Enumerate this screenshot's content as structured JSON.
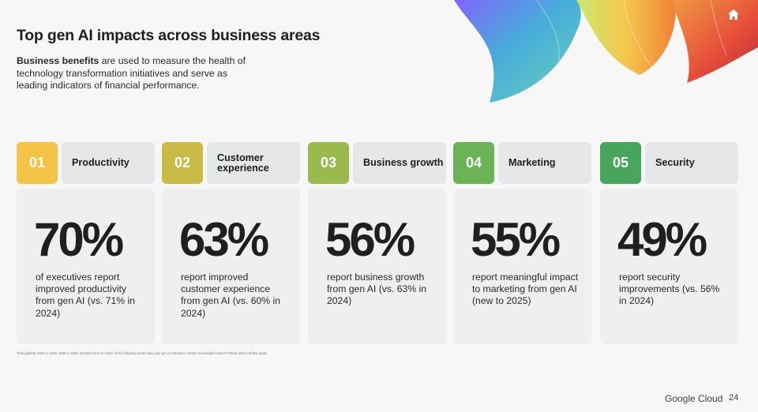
{
  "title": "Top gen AI impacts across business areas",
  "intro": {
    "bold": "Business benefits",
    "rest": " are used to measure the health of technology transformation initiatives and serve as leading indicators of financial performance."
  },
  "areas": [
    {
      "num": "01",
      "label": "Productivity",
      "pct": "70%",
      "desc": "of executives report improved productivity from gen AI (vs. 71% in 2024)",
      "color": "#f3c445"
    },
    {
      "num": "02",
      "label": "Customer experience",
      "pct": "63%",
      "desc": "report improved customer experience from gen AI (vs. 60% in 2024)",
      "color": "#c9bb45"
    },
    {
      "num": "03",
      "label": "Business growth",
      "pct": "56%",
      "desc": "report business growth from gen AI (vs. 63% in 2024)",
      "color": "#9bba4e"
    },
    {
      "num": "04",
      "label": "Marketing",
      "pct": "55%",
      "desc": "report meaningful impact to marketing from gen AI (new to 2025)",
      "color": "#6bb356"
    },
    {
      "num": "05",
      "label": "Security",
      "pct": "49%",
      "desc": "report security improvements (vs. 56% in 2024)",
      "color": "#48a65c"
    }
  ],
  "footnote": "Total (global): 2024 n=1539, 2025 n=3466. Question text: In which of the following areas have your gen AI solutions created meaningful impact? Please select all that apply.",
  "brand": "Google Cloud",
  "page_number": "24",
  "icons": {
    "home": "home-icon"
  }
}
